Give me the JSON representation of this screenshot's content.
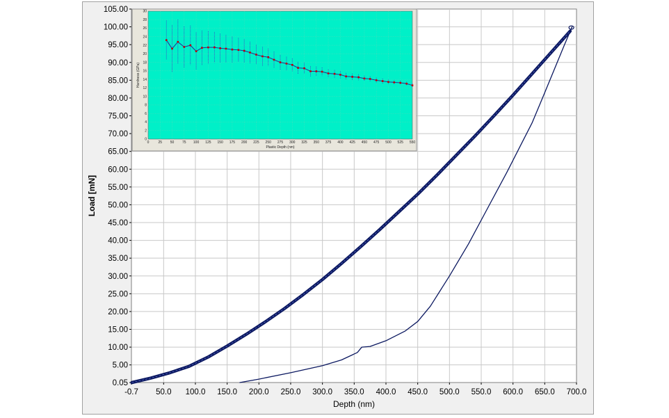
{
  "chart_data": [
    {
      "type": "line",
      "xlabel": "Depth (nm)",
      "ylabel": "Load [mN]",
      "xlim": [
        -0.7,
        700.0
      ],
      "ylim": [
        0.05,
        105.0
      ],
      "x_tick_labels": [
        "-0.7",
        "50.0",
        "100.0",
        "150.0",
        "200.0",
        "250.0",
        "300.0",
        "350.0",
        "400.0",
        "450.0",
        "500.0",
        "550.0",
        "600.0",
        "650.0",
        "700.0"
      ],
      "y_tick_labels": [
        "0.05",
        "5.00",
        "10.00",
        "15.00",
        "20.00",
        "25.00",
        "30.00",
        "35.00",
        "40.00",
        "45.00",
        "50.00",
        "55.00",
        "60.00",
        "65.00",
        "70.00",
        "75.00",
        "80.00",
        "85.00",
        "90.00",
        "95.00",
        "100.00",
        "105.00"
      ],
      "grid": true,
      "line_color": "#0b1860",
      "series": [
        {
          "values_role": "loading",
          "x": [
            0,
            30,
            60,
            90,
            120,
            150,
            180,
            210,
            240,
            270,
            300,
            330,
            360,
            390,
            420,
            450,
            480,
            510,
            540,
            570,
            600,
            630,
            660,
            690
          ],
          "y": [
            0.05,
            1.3,
            2.8,
            4.6,
            7.2,
            10.3,
            13.6,
            17.1,
            20.8,
            24.8,
            29.0,
            33.5,
            38.2,
            43.0,
            48.0,
            53.0,
            58.3,
            63.8,
            69.3,
            75.0,
            80.8,
            86.8,
            92.8,
            98.8
          ]
        },
        {
          "values_role": "unloading",
          "x": [
            170,
            200,
            250,
            300,
            330,
            355,
            362,
            375,
            400,
            430,
            450,
            470,
            500,
            530,
            560,
            590,
            610,
            630,
            650,
            665,
            680,
            693
          ],
          "y": [
            0.05,
            1.0,
            2.8,
            4.8,
            6.4,
            8.5,
            10.0,
            10.2,
            11.8,
            14.5,
            17.2,
            21.5,
            30.0,
            39.0,
            49.0,
            59.0,
            66.0,
            73.0,
            81.5,
            88.0,
            94.5,
            100.0
          ]
        }
      ]
    },
    {
      "type": "line",
      "xlabel": "Plastic Depth (nm)",
      "ylabel": "Hardness (GPa)",
      "xlim": [
        0,
        550
      ],
      "ylim": [
        0,
        30
      ],
      "x_ticks": [
        0,
        25,
        50,
        75,
        100,
        125,
        150,
        175,
        200,
        225,
        250,
        275,
        300,
        325,
        350,
        375,
        400,
        425,
        450,
        475,
        500,
        525,
        550
      ],
      "y_ticks": [
        0,
        2,
        4,
        6,
        8,
        10,
        12,
        14,
        16,
        18,
        20,
        22,
        24,
        26,
        28,
        30
      ],
      "background": "#00f0c8",
      "grid": true,
      "series": [
        {
          "x": [
            38,
            50,
            62,
            75,
            88,
            100,
            112,
            125,
            138,
            150,
            162,
            175,
            188,
            200,
            212,
            225,
            238,
            250,
            262,
            275,
            288,
            300,
            312,
            325,
            338,
            350,
            362,
            375,
            388,
            400,
            412,
            425,
            438,
            450,
            462,
            475,
            488,
            500,
            512,
            525,
            538,
            550
          ],
          "y": [
            23.2,
            21.2,
            22.8,
            21.6,
            22.0,
            20.6,
            21.4,
            21.5,
            21.5,
            21.3,
            21.2,
            21.0,
            20.9,
            20.7,
            20.3,
            19.8,
            19.4,
            19.2,
            18.6,
            18.0,
            17.7,
            17.4,
            16.7,
            16.6,
            15.9,
            15.9,
            15.8,
            15.4,
            15.3,
            15.1,
            14.7,
            14.6,
            14.5,
            14.2,
            14.1,
            13.8,
            13.6,
            13.4,
            13.3,
            13.2,
            13.0,
            12.6
          ],
          "err": [
            4.6,
            5.5,
            5.2,
            4.8,
            4.6,
            4.4,
            4.0,
            3.8,
            3.6,
            3.4,
            3.2,
            3.0,
            2.8,
            2.7,
            2.5,
            2.3,
            2.2,
            2.0,
            1.9,
            1.7,
            1.6,
            1.5,
            1.4,
            1.3,
            1.2,
            1.1,
            1.0,
            0.95,
            0.9,
            0.85,
            0.8,
            0.75,
            0.7,
            0.65,
            0.62,
            0.6,
            0.58,
            0.55,
            0.52,
            0.5,
            0.48,
            0.45
          ]
        }
      ]
    }
  ]
}
